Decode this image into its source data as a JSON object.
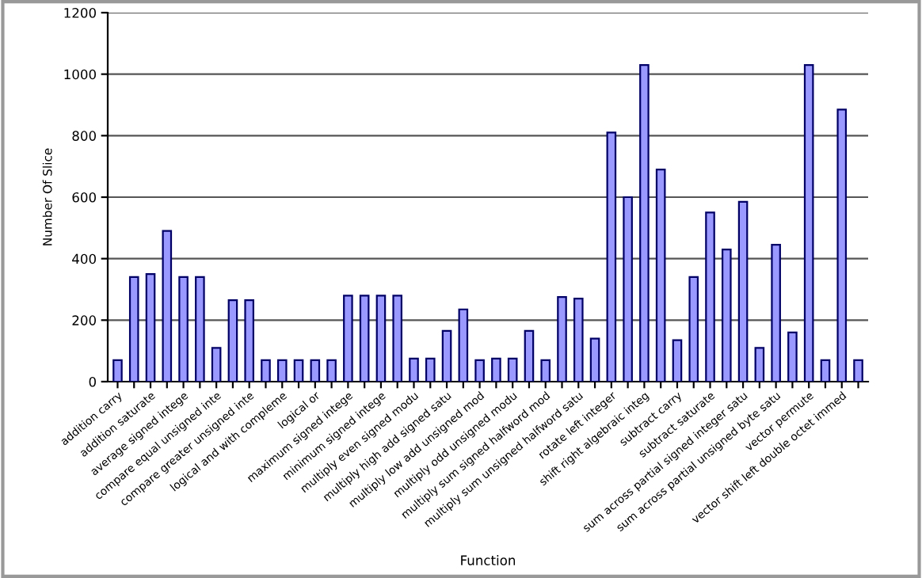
{
  "chart_data": {
    "type": "bar",
    "xlabel": "Function",
    "ylabel": "Number Of Slice",
    "categories": [
      "addition carry",
      null,
      "addition saturate",
      null,
      "average signed intege",
      null,
      "compare equal unsigned inte",
      null,
      "compare greater unsigned inte",
      null,
      "logical and with compleme",
      null,
      "logical or",
      null,
      "maximum signed intege",
      null,
      "minimum signed intege",
      null,
      "multiply even signed modu",
      null,
      "multiply high add signed satu",
      null,
      "multiply low add unsigned mod",
      null,
      "multiply odd unsigned modu",
      null,
      "multiply sum signed halfword mod",
      null,
      "multiply sum unsigned halfword satu",
      null,
      "rotate left integer",
      null,
      "shift right algebraic integ",
      null,
      "subtract carry",
      null,
      "subtract saturate",
      null,
      "sum across partial signed integer satu",
      null,
      "sum across partial unsigned byte satu",
      null,
      "vector permute",
      null,
      "vector shift left double octet immed",
      null
    ],
    "values": [
      70,
      340,
      350,
      490,
      340,
      340,
      110,
      265,
      265,
      70,
      70,
      70,
      70,
      70,
      280,
      280,
      280,
      280,
      75,
      75,
      165,
      235,
      70,
      75,
      75,
      165,
      70,
      275,
      270,
      140,
      810,
      600,
      1030,
      690,
      135,
      340,
      550,
      430,
      585,
      110,
      445,
      160,
      1030,
      70,
      885,
      70
    ],
    "color": "#9999ff",
    "ylim": [
      0,
      1200
    ],
    "yticks": [
      0,
      200,
      400,
      600,
      800,
      1000,
      1200
    ],
    "grid": "y"
  }
}
